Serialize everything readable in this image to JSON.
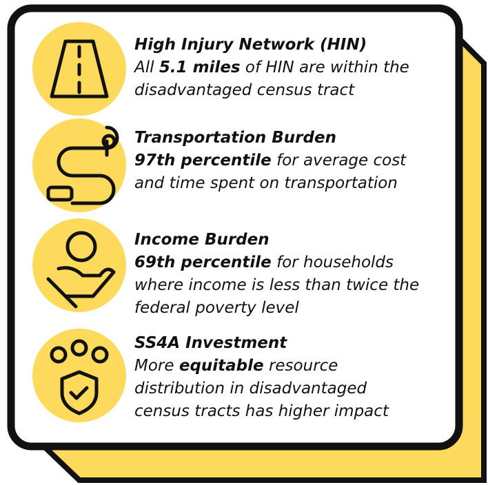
{
  "items": [
    {
      "heading": "High Injury Network (HIN)",
      "lines": [
        [
          {
            "text": "All "
          },
          {
            "text": "5.1 miles",
            "bold": true
          },
          {
            "text": " of HIN are within the"
          }
        ],
        [
          {
            "text": "disadvantaged census tract"
          }
        ]
      ]
    },
    {
      "heading": "Transportation Burden",
      "lines": [
        [
          {
            "text": "97th percentile",
            "bold": true
          },
          {
            "text": " for average cost"
          }
        ],
        [
          {
            "text": "and time spent on transportation"
          }
        ]
      ]
    },
    {
      "heading": "Income Burden",
      "lines": [
        [
          {
            "text": "69th percentile",
            "bold": true
          },
          {
            "text": " for households"
          }
        ],
        [
          {
            "text": "where income is less than twice the"
          }
        ],
        [
          {
            "text": "federal poverty level"
          }
        ]
      ]
    },
    {
      "heading": "SS4A Investment",
      "lines": [
        [
          {
            "text": "More "
          },
          {
            "text": "equitable",
            "bold": true
          },
          {
            "text": " resource"
          }
        ],
        [
          {
            "text": "distribution in disadvantaged"
          }
        ],
        [
          {
            "text": "census tracts has higher impact"
          }
        ]
      ]
    }
  ]
}
